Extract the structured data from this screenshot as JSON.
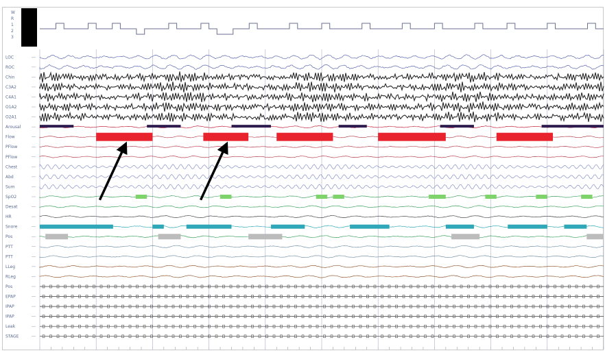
{
  "chart_data": {
    "type": "polysomnogram",
    "title": "",
    "hypnogram": {
      "y_tick_labels": [
        "W",
        "R",
        "1",
        "2",
        "3"
      ],
      "stage_sequence": [
        2,
        2,
        1,
        2,
        2,
        2,
        1,
        2,
        2,
        1,
        2,
        2,
        3,
        2,
        2,
        2,
        1,
        2,
        2,
        2,
        1,
        2,
        3,
        3,
        2,
        2,
        1,
        2,
        2,
        2,
        2,
        1,
        2,
        2,
        2,
        1,
        2,
        2,
        2,
        2,
        1,
        2,
        2,
        2,
        2,
        1,
        2,
        2,
        2,
        1,
        2,
        2,
        2,
        2,
        1,
        2,
        2,
        2,
        1,
        2,
        2,
        2,
        2,
        1,
        2,
        2,
        2,
        2,
        1,
        2
      ]
    },
    "channels": [
      {
        "label": "LOC",
        "color": "#4a55a8"
      },
      {
        "label": "ROC",
        "color": "#4a55a8"
      },
      {
        "label": "Chin",
        "color": "#111111"
      },
      {
        "label": "C3A2",
        "color": "#111111"
      },
      {
        "label": "C4A1",
        "color": "#111111"
      },
      {
        "label": "O1A2",
        "color": "#111111"
      },
      {
        "label": "O2A1",
        "color": "#111111"
      },
      {
        "label": "Arousal",
        "color": "#c0102a"
      },
      {
        "label": "Flow",
        "color": "#b03040"
      },
      {
        "label": "PFlow",
        "color": "#b03040"
      },
      {
        "label": "PFlow",
        "color": "#b03040"
      },
      {
        "label": "Chest",
        "color": "#7a84c0"
      },
      {
        "label": "Abd",
        "color": "#7a84c0"
      },
      {
        "label": "Sum",
        "color": "#7a84c0"
      },
      {
        "label": "SpO2",
        "color": "#2e9a50"
      },
      {
        "label": "Desat",
        "color": "#2e9a50"
      },
      {
        "label": "HR",
        "color": "#333333"
      },
      {
        "label": "Snore",
        "color": "#1aa0b0"
      },
      {
        "label": "Pos",
        "color": "#2e9a50"
      },
      {
        "label": "PTT",
        "color": "#6a8aa0"
      },
      {
        "label": "PTT",
        "color": "#6a8aa0"
      },
      {
        "label": "LLeg",
        "color": "#8a4a20"
      },
      {
        "label": "RLeg",
        "color": "#8a4a20"
      },
      {
        "label": "Pos",
        "color": "#222222"
      },
      {
        "label": "EPAP",
        "color": "#222222"
      },
      {
        "label": "IPAP",
        "color": "#222222"
      },
      {
        "label": "IPAP",
        "color": "#222222"
      },
      {
        "label": "Leak",
        "color": "#222222"
      },
      {
        "label": "STAGE",
        "color": "#222222"
      }
    ],
    "apnea_events": [
      {
        "start": 0.1,
        "end": 0.2,
        "color": "#e8232d"
      },
      {
        "start": 0.29,
        "end": 0.37,
        "color": "#e8232d"
      },
      {
        "start": 0.42,
        "end": 0.52,
        "color": "#e8232d"
      },
      {
        "start": 0.6,
        "end": 0.72,
        "color": "#e8232d"
      },
      {
        "start": 0.81,
        "end": 0.91,
        "color": "#e8232d"
      }
    ],
    "arousal_bars": [
      {
        "start": 0.0,
        "end": 0.06
      },
      {
        "start": 0.19,
        "end": 0.25
      },
      {
        "start": 0.34,
        "end": 0.41
      },
      {
        "start": 0.53,
        "end": 0.58
      },
      {
        "start": 0.71,
        "end": 0.77
      },
      {
        "start": 0.89,
        "end": 1.0
      }
    ],
    "desat_marks": [
      {
        "start": 0.17,
        "end": 0.19
      },
      {
        "start": 0.32,
        "end": 0.34
      },
      {
        "start": 0.49,
        "end": 0.51
      },
      {
        "start": 0.52,
        "end": 0.54
      },
      {
        "start": 0.69,
        "end": 0.72
      },
      {
        "start": 0.79,
        "end": 0.81
      },
      {
        "start": 0.88,
        "end": 0.9
      },
      {
        "start": 0.96,
        "end": 0.98
      }
    ],
    "snore_segments": [
      {
        "start": 0.0,
        "end": 0.13
      },
      {
        "start": 0.2,
        "end": 0.22
      },
      {
        "start": 0.26,
        "end": 0.34
      },
      {
        "start": 0.41,
        "end": 0.47
      },
      {
        "start": 0.55,
        "end": 0.62
      },
      {
        "start": 0.72,
        "end": 0.77
      },
      {
        "start": 0.83,
        "end": 0.9
      },
      {
        "start": 0.93,
        "end": 0.97
      }
    ],
    "pos_markers": [
      {
        "start": 0.01,
        "end": 0.05
      },
      {
        "start": 0.21,
        "end": 0.25
      },
      {
        "start": 0.37,
        "end": 0.43
      },
      {
        "start": 0.73,
        "end": 0.78
      },
      {
        "start": 0.97,
        "end": 1.0
      }
    ],
    "epochs": 10,
    "annotations": [
      {
        "type": "arrow",
        "target_event": 0
      },
      {
        "type": "arrow",
        "target_event": 1
      }
    ],
    "colors": {
      "apnea": "#e8232d",
      "arousal": "#2e1c50",
      "desat": "#7ed36a",
      "snore": "#2ea8b8",
      "pos": "#bcbcbc",
      "grid": "#aab0c4",
      "axis_label": "#5a6a90"
    },
    "grid": true
  }
}
